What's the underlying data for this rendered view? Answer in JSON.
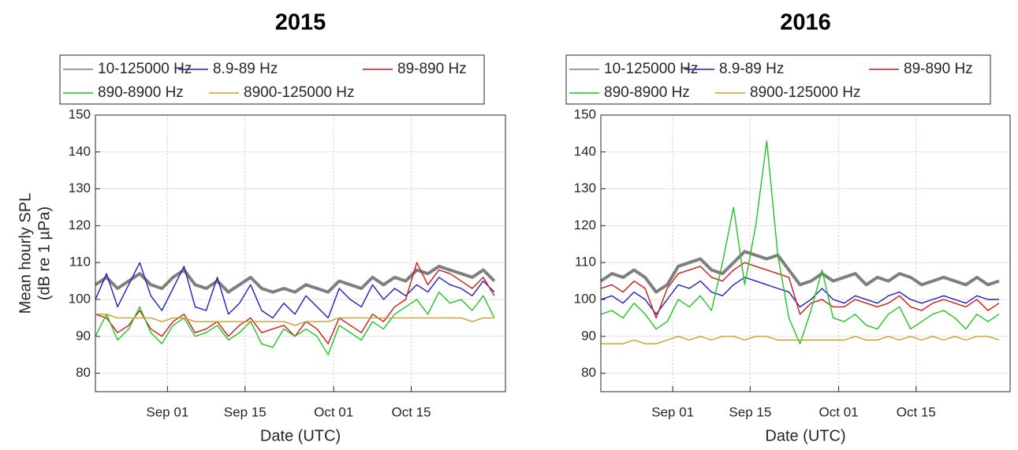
{
  "chart_data": [
    {
      "type": "line",
      "title": "2015",
      "xlabel": "Date (UTC)",
      "ylabel": [
        "Mean hourly SPL",
        "(dB re 1 µPa)"
      ],
      "legend": "top outside",
      "grid": true,
      "x": [
        "2015-08-19",
        "2015-08-21",
        "2015-08-23",
        "2015-08-25",
        "2015-08-27",
        "2015-08-29",
        "2015-08-31",
        "2015-09-02",
        "2015-09-04",
        "2015-09-06",
        "2015-09-08",
        "2015-09-10",
        "2015-09-12",
        "2015-09-14",
        "2015-09-16",
        "2015-09-18",
        "2015-09-20",
        "2015-09-22",
        "2015-09-24",
        "2015-09-26",
        "2015-09-28",
        "2015-09-30",
        "2015-10-02",
        "2015-10-04",
        "2015-10-06",
        "2015-10-08",
        "2015-10-10",
        "2015-10-12",
        "2015-10-14",
        "2015-10-16",
        "2015-10-18",
        "2015-10-20",
        "2015-10-22",
        "2015-10-24",
        "2015-10-26",
        "2015-10-28",
        "2015-10-30"
      ],
      "xlim": [
        "2015-08-19",
        "2015-11-01"
      ],
      "xticks": [
        {
          "value": "2015-09-01",
          "label": "Sep 01"
        },
        {
          "value": "2015-09-15",
          "label": "Sep 15"
        },
        {
          "value": "2015-10-01",
          "label": "Oct 01"
        },
        {
          "value": "2015-10-15",
          "label": "Oct 15"
        }
      ],
      "ylim": [
        75,
        150
      ],
      "yticks": [
        80,
        90,
        100,
        110,
        120,
        130,
        140,
        150
      ],
      "series": [
        {
          "name": "10-125000 Hz",
          "color": "#7f7f7f",
          "values": [
            104,
            106,
            103,
            105,
            107,
            104,
            103,
            106,
            108,
            104,
            103,
            105,
            102,
            104,
            106,
            103,
            102,
            103,
            102,
            104,
            103,
            102,
            105,
            104,
            103,
            106,
            104,
            106,
            105,
            108,
            107,
            109,
            108,
            107,
            106,
            108,
            105
          ]
        },
        {
          "name": "8.9-89 Hz",
          "color": "#1f1fbf",
          "values": [
            100,
            107,
            98,
            104,
            110,
            101,
            97,
            103,
            109,
            98,
            97,
            106,
            96,
            99,
            104,
            97,
            95,
            99,
            96,
            101,
            98,
            95,
            103,
            100,
            98,
            104,
            100,
            103,
            101,
            104,
            102,
            106,
            104,
            103,
            101,
            105,
            102
          ]
        },
        {
          "name": "89-890 Hz",
          "color": "#d01818",
          "values": [
            96,
            95,
            91,
            93,
            97,
            92,
            90,
            94,
            96,
            91,
            92,
            94,
            90,
            93,
            95,
            91,
            92,
            93,
            90,
            94,
            92,
            88,
            95,
            93,
            91,
            96,
            94,
            98,
            100,
            110,
            104,
            108,
            107,
            105,
            103,
            106,
            101
          ]
        },
        {
          "name": "890-8900 Hz",
          "color": "#22c422",
          "values": [
            90,
            96,
            89,
            92,
            98,
            91,
            88,
            93,
            95,
            90,
            91,
            93,
            89,
            91,
            94,
            88,
            87,
            92,
            90,
            92,
            90,
            85,
            93,
            91,
            89,
            94,
            92,
            96,
            98,
            100,
            96,
            102,
            99,
            100,
            97,
            101,
            95
          ]
        },
        {
          "name": "8900-125000 Hz",
          "color": "#c8a02a",
          "values": [
            96,
            96,
            95,
            95,
            95,
            95,
            94,
            95,
            95,
            94,
            94,
            94,
            94,
            94,
            94,
            94,
            94,
            94,
            93,
            94,
            94,
            94,
            95,
            95,
            95,
            95,
            95,
            95,
            95,
            95,
            95,
            95,
            95,
            95,
            94,
            95,
            95
          ]
        }
      ]
    },
    {
      "type": "line",
      "title": "2016",
      "xlabel": "Date (UTC)",
      "legend": "top outside",
      "grid": true,
      "x": [
        "2016-08-19",
        "2016-08-21",
        "2016-08-23",
        "2016-08-25",
        "2016-08-27",
        "2016-08-29",
        "2016-08-31",
        "2016-09-02",
        "2016-09-04",
        "2016-09-06",
        "2016-09-08",
        "2016-09-10",
        "2016-09-12",
        "2016-09-14",
        "2016-09-16",
        "2016-09-18",
        "2016-09-20",
        "2016-09-22",
        "2016-09-24",
        "2016-09-26",
        "2016-09-28",
        "2016-09-30",
        "2016-10-02",
        "2016-10-04",
        "2016-10-06",
        "2016-10-08",
        "2016-10-10",
        "2016-10-12",
        "2016-10-14",
        "2016-10-16",
        "2016-10-18",
        "2016-10-20",
        "2016-10-22",
        "2016-10-24",
        "2016-10-26",
        "2016-10-28",
        "2016-10-30"
      ],
      "xlim": [
        "2016-08-19",
        "2016-11-01"
      ],
      "xticks": [
        {
          "value": "2016-09-01",
          "label": "Sep 01"
        },
        {
          "value": "2016-09-15",
          "label": "Sep 15"
        },
        {
          "value": "2016-10-01",
          "label": "Oct 01"
        },
        {
          "value": "2016-10-15",
          "label": "Oct 15"
        }
      ],
      "ylim": [
        75,
        150
      ],
      "yticks": [
        80,
        90,
        100,
        110,
        120,
        130,
        140,
        150
      ],
      "series": [
        {
          "name": "10-125000 Hz",
          "color": "#7f7f7f",
          "values": [
            105,
            107,
            106,
            108,
            106,
            102,
            104,
            109,
            110,
            111,
            108,
            107,
            110,
            113,
            112,
            111,
            112,
            108,
            104,
            105,
            107,
            105,
            106,
            107,
            104,
            106,
            105,
            107,
            106,
            104,
            105,
            106,
            105,
            104,
            106,
            104,
            105
          ]
        },
        {
          "name": "8.9-89 Hz",
          "color": "#1f1fbf",
          "values": [
            100,
            101,
            99,
            102,
            100,
            96,
            100,
            104,
            103,
            105,
            102,
            101,
            104,
            106,
            105,
            104,
            103,
            102,
            98,
            100,
            103,
            100,
            99,
            101,
            100,
            99,
            101,
            102,
            100,
            99,
            100,
            101,
            100,
            99,
            101,
            100,
            100
          ]
        },
        {
          "name": "89-890 Hz",
          "color": "#d01818",
          "values": [
            103,
            104,
            102,
            105,
            103,
            95,
            103,
            107,
            108,
            109,
            106,
            105,
            108,
            110,
            109,
            108,
            107,
            106,
            96,
            99,
            100,
            98,
            98,
            100,
            99,
            98,
            99,
            101,
            98,
            97,
            99,
            100,
            99,
            98,
            100,
            97,
            99
          ]
        },
        {
          "name": "890-8900 Hz",
          "color": "#22c422",
          "values": [
            96,
            97,
            95,
            99,
            96,
            92,
            94,
            100,
            98,
            101,
            97,
            110,
            125,
            104,
            120,
            143,
            112,
            95,
            88,
            97,
            108,
            95,
            94,
            96,
            93,
            92,
            96,
            98,
            92,
            94,
            96,
            97,
            95,
            92,
            96,
            94,
            96
          ]
        },
        {
          "name": "8900-125000 Hz",
          "color": "#c8a02a",
          "values": [
            88,
            88,
            88,
            89,
            88,
            88,
            89,
            90,
            89,
            90,
            89,
            90,
            90,
            89,
            90,
            90,
            89,
            89,
            89,
            89,
            89,
            89,
            89,
            90,
            89,
            89,
            90,
            89,
            90,
            89,
            90,
            89,
            90,
            89,
            90,
            90,
            89
          ]
        }
      ]
    }
  ]
}
